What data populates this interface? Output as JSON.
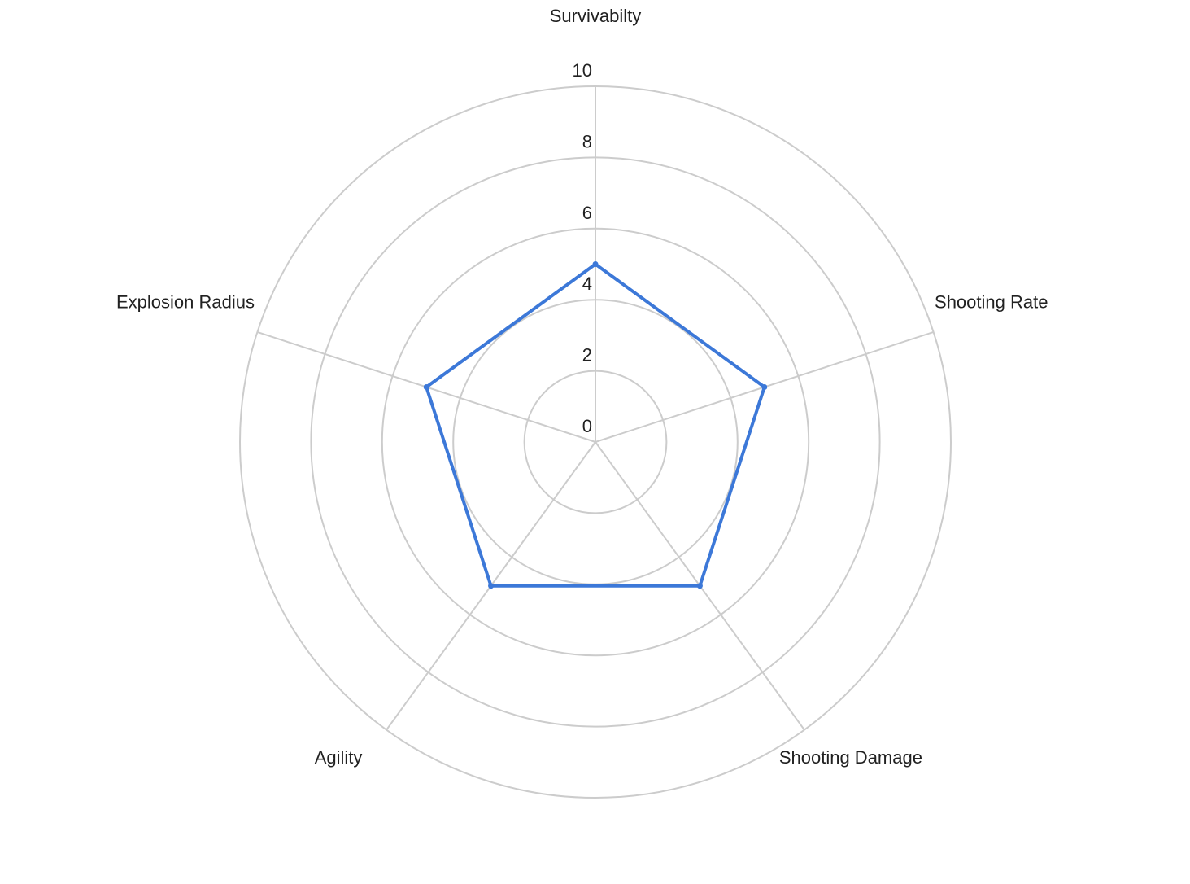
{
  "chart_data": {
    "type": "radar",
    "categories": [
      "Survivabilty",
      "Shooting Rate",
      "Shooting Damage",
      "Agility",
      "Explosion Radius"
    ],
    "series": [
      {
        "values": [
          5,
          5,
          5,
          5,
          5
        ],
        "color": "#3c78d8"
      }
    ],
    "rlim": [
      0,
      10
    ],
    "ticks": [
      "0",
      "2",
      "4",
      "6",
      "8",
      "10"
    ],
    "grid": true,
    "legend": "none"
  }
}
